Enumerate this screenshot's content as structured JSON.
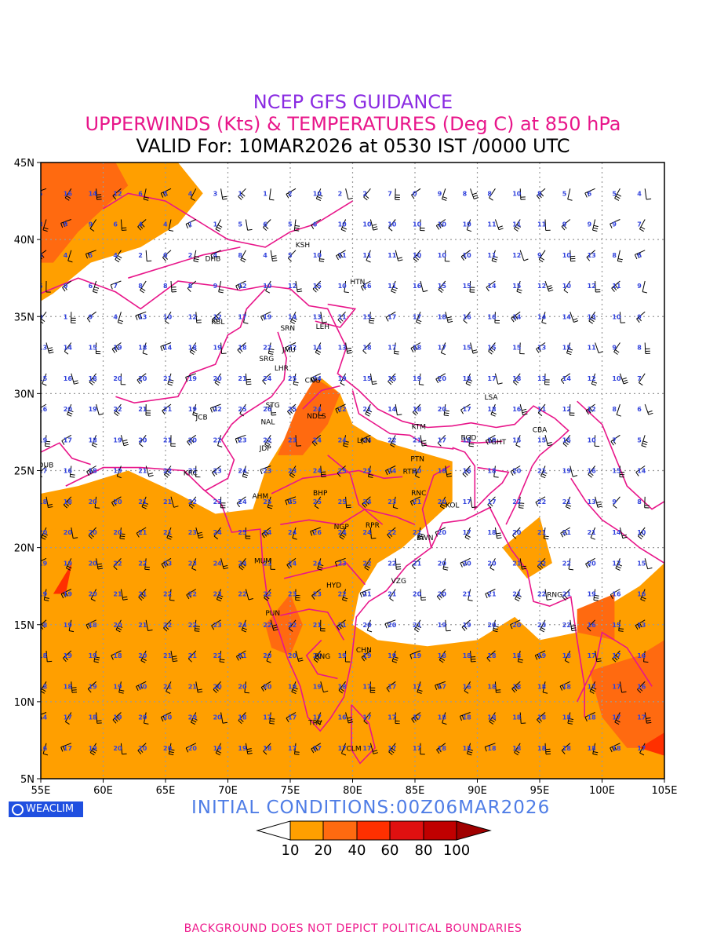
{
  "titles": {
    "line1": "NCEP GFS GUIDANCE",
    "line2": "UPPERWINDS (Kts) & TEMPERATURES (Deg C) at 850 hPa",
    "line3": "VALID For: 10MAR2026 at 0530 IST /0000 UTC"
  },
  "colors": {
    "title1": "#8a2be2",
    "title2": "#e8168a",
    "title3": "#000000",
    "boundary": "#e8168a",
    "temp_labels": "#3344dd",
    "grid": "#9a9a9a",
    "land_shade_10": "#ff9f00",
    "land_shade_20": "#ff6a10",
    "land_shade_40": "#ff3000"
  },
  "axes": {
    "lat_labels": [
      "45N",
      "40N",
      "35N",
      "30N",
      "25N",
      "20N",
      "15N",
      "10N",
      "5N"
    ],
    "lon_labels": [
      "55E",
      "60E",
      "65E",
      "70E",
      "75E",
      "80E",
      "85E",
      "90E",
      "95E",
      "100E",
      "105E"
    ]
  },
  "stations": [
    {
      "code": "KSH",
      "lon": 76.0,
      "lat": 39.5
    },
    {
      "code": "DHB",
      "lon": 68.8,
      "lat": 38.6
    },
    {
      "code": "HTN",
      "lon": 80.4,
      "lat": 37.1
    },
    {
      "code": "KBL",
      "lon": 69.2,
      "lat": 34.5
    },
    {
      "code": "SRN",
      "lon": 74.8,
      "lat": 34.1
    },
    {
      "code": "LEH",
      "lon": 77.6,
      "lat": 34.2
    },
    {
      "code": "JMU",
      "lon": 74.9,
      "lat": 32.7
    },
    {
      "code": "SRG",
      "lon": 73.1,
      "lat": 32.1
    },
    {
      "code": "LHR",
      "lon": 74.3,
      "lat": 31.5
    },
    {
      "code": "CNG",
      "lon": 76.8,
      "lat": 30.7
    },
    {
      "code": "LSA",
      "lon": 91.1,
      "lat": 29.6
    },
    {
      "code": "STG",
      "lon": 73.6,
      "lat": 29.1
    },
    {
      "code": "JCB",
      "lon": 67.9,
      "lat": 28.3
    },
    {
      "code": "NAL",
      "lon": 73.2,
      "lat": 28.0
    },
    {
      "code": "NDLS",
      "lon": 77.1,
      "lat": 28.4
    },
    {
      "code": "CBA",
      "lon": 95.0,
      "lat": 27.5
    },
    {
      "code": "KTM",
      "lon": 85.3,
      "lat": 27.7
    },
    {
      "code": "BGD",
      "lon": 89.3,
      "lat": 27.0
    },
    {
      "code": "GHT",
      "lon": 91.7,
      "lat": 26.7
    },
    {
      "code": "LKN",
      "lon": 80.9,
      "lat": 26.8
    },
    {
      "code": "JDP",
      "lon": 73.0,
      "lat": 26.3
    },
    {
      "code": "PTN",
      "lon": 85.2,
      "lat": 25.6
    },
    {
      "code": "DUB",
      "lon": 55.4,
      "lat": 25.2
    },
    {
      "code": "KRC",
      "lon": 67.0,
      "lat": 24.7
    },
    {
      "code": "RTH",
      "lon": 84.6,
      "lat": 24.8
    },
    {
      "code": "BHP",
      "lon": 77.4,
      "lat": 23.4
    },
    {
      "code": "AHM",
      "lon": 72.6,
      "lat": 23.2
    },
    {
      "code": "RNC",
      "lon": 85.3,
      "lat": 23.4
    },
    {
      "code": "KOL",
      "lon": 88.0,
      "lat": 22.6
    },
    {
      "code": "NGP",
      "lon": 79.1,
      "lat": 21.2
    },
    {
      "code": "RPR",
      "lon": 81.6,
      "lat": 21.3
    },
    {
      "code": "BWN",
      "lon": 85.8,
      "lat": 20.5
    },
    {
      "code": "MUM",
      "lon": 72.8,
      "lat": 19.0
    },
    {
      "code": "HYD",
      "lon": 78.5,
      "lat": 17.4
    },
    {
      "code": "VZG",
      "lon": 83.7,
      "lat": 17.7
    },
    {
      "code": "RNG",
      "lon": 96.2,
      "lat": 16.8
    },
    {
      "code": "PUN",
      "lon": 73.6,
      "lat": 15.6
    },
    {
      "code": "CHN",
      "lon": 80.9,
      "lat": 13.2
    },
    {
      "code": "BNG",
      "lon": 77.6,
      "lat": 12.8
    },
    {
      "code": "TRV",
      "lon": 77.0,
      "lat": 8.5
    },
    {
      "code": "CLM",
      "lon": 80.1,
      "lat": 6.8
    }
  ],
  "temperature_grid": {
    "lons": [
      55,
      57,
      59,
      61,
      63,
      65,
      67,
      69,
      71,
      73,
      75,
      77,
      79,
      81,
      83,
      85,
      87,
      89,
      91,
      93,
      95,
      97,
      99,
      101,
      103
    ],
    "lats": [
      43,
      41,
      39,
      37,
      35,
      33,
      31,
      29,
      27,
      25,
      23,
      21,
      19,
      17,
      15,
      13,
      11,
      9,
      7
    ],
    "rows": [
      [
        "5",
        "16",
        "14",
        "12",
        "6",
        "5",
        "4",
        "3",
        "1",
        "1",
        "2",
        "10",
        "2",
        "2",
        "7",
        "0",
        "9",
        "8",
        "8",
        "10",
        "8",
        "5",
        "6",
        "5",
        "4"
      ],
      [
        "8",
        "9",
        "9",
        "6",
        "4",
        "4",
        "1",
        "1",
        "5",
        "6",
        "5",
        "6",
        "10",
        "10",
        "10",
        "10",
        "10",
        "10",
        "11",
        "11",
        "11",
        "9",
        "9",
        "9",
        "7"
      ],
      [
        "4",
        "4",
        "5",
        "4",
        "2",
        "0",
        "2",
        "4",
        "8",
        "4",
        "5",
        "10",
        "11",
        "11",
        "11",
        "10",
        "10",
        "10",
        "11",
        "12",
        "9",
        "10",
        "13",
        "8",
        "6"
      ],
      [
        "5",
        "0",
        "6",
        "7",
        "8",
        "8",
        "8",
        "9",
        "12",
        "10",
        "12",
        "15",
        "10",
        "16",
        "11",
        "16",
        "15",
        "15",
        "14",
        "15",
        "12",
        "10",
        "12",
        "11",
        "9"
      ],
      [
        "0",
        "1",
        "9",
        "4",
        "13",
        "10",
        "12",
        "12",
        "17",
        "19",
        "14",
        "13",
        "11",
        "15",
        "17",
        "17",
        "18",
        "16",
        "16",
        "14",
        "14",
        "14",
        "13",
        "10",
        "9"
      ],
      [
        "13",
        "14",
        "15",
        "19",
        "18",
        "14",
        "18",
        "19",
        "18",
        "22",
        "22",
        "14",
        "13",
        "18",
        "17",
        "18",
        "17",
        "15",
        "15",
        "15",
        "13",
        "15",
        "11",
        "9",
        "8"
      ],
      [
        "15",
        "16",
        "18",
        "20",
        "20",
        "21",
        "19",
        "20",
        "21",
        "24",
        "25",
        "24",
        "19",
        "15",
        "15",
        "19",
        "20",
        "18",
        "17",
        "18",
        "13",
        "14",
        "12",
        "10",
        "7"
      ],
      [
        "16",
        "20",
        "19",
        "22",
        "21",
        "21",
        "19",
        "22",
        "25",
        "26",
        "25",
        "24",
        "22",
        "21",
        "14",
        "18",
        "20",
        "17",
        "18",
        "16",
        "11",
        "12",
        "12",
        "8",
        "6"
      ],
      [
        "19",
        "17",
        "18",
        "19",
        "20",
        "21",
        "20",
        "22",
        "23",
        "22",
        "23",
        "24",
        "24",
        "24",
        "22",
        "21",
        "17",
        "18",
        "18",
        "15",
        "15",
        "15",
        "10",
        "7",
        "5"
      ],
      [
        "17",
        "16",
        "18",
        "19",
        "21",
        "22",
        "22",
        "23",
        "24",
        "23",
        "23",
        "24",
        "25",
        "25",
        "24",
        "20",
        "18",
        "16",
        "18",
        "20",
        "21",
        "19",
        "16",
        "15",
        "14"
      ],
      [
        "18",
        "18",
        "20",
        "20",
        "21",
        "21",
        "22",
        "23",
        "24",
        "25",
        "25",
        "25",
        "25",
        "24",
        "23",
        "21",
        "20",
        "17",
        "17",
        "22",
        "22",
        "21",
        "13",
        "9",
        "8"
      ],
      [
        "20",
        "20",
        "20",
        "20",
        "21",
        "21",
        "23",
        "24",
        "25",
        "24",
        "24",
        "26",
        "24",
        "24",
        "22",
        "22",
        "20",
        "17",
        "18",
        "20",
        "21",
        "21",
        "21",
        "14",
        "10"
      ],
      [
        "19",
        "19",
        "20",
        "22",
        "22",
        "23",
        "23",
        "24",
        "24",
        "23",
        "24",
        "24",
        "23",
        "22",
        "22",
        "21",
        "20",
        "20",
        "20",
        "21",
        "22",
        "22",
        "20",
        "17",
        "15"
      ],
      [
        "19",
        "19",
        "20",
        "21",
        "21",
        "22",
        "22",
        "23",
        "22",
        "22",
        "23",
        "23",
        "22",
        "21",
        "21",
        "20",
        "20",
        "21",
        "21",
        "21",
        "22",
        "21",
        "19",
        "16",
        "16"
      ],
      [
        "18",
        "19",
        "18",
        "20",
        "21",
        "22",
        "22",
        "23",
        "24",
        "22",
        "22",
        "21",
        "21",
        "20",
        "20",
        "21",
        "19",
        "19",
        "20",
        "20",
        "23",
        "22",
        "16",
        "15",
        "13"
      ],
      [
        "18",
        "19",
        "19",
        "18",
        "20",
        "21",
        "21",
        "22",
        "21",
        "20",
        "20",
        "20",
        "19",
        "19",
        "19",
        "19",
        "18",
        "18",
        "18",
        "18",
        "19",
        "18",
        "17",
        "17",
        "16"
      ],
      [
        "18",
        "18",
        "19",
        "19",
        "20",
        "21",
        "21",
        "20",
        "20",
        "20",
        "19",
        "19",
        "18",
        "17",
        "17",
        "17",
        "17",
        "16",
        "18",
        "18",
        "18",
        "18",
        "17",
        "17",
        "16"
      ],
      [
        "14",
        "17",
        "18",
        "19",
        "20",
        "20",
        "20",
        "20",
        "18",
        "17",
        "17",
        "17",
        "16",
        "17",
        "17",
        "17",
        "18",
        "18",
        "18",
        "18",
        "18",
        "18",
        "18",
        "17",
        "17"
      ],
      [
        "16",
        "17",
        "19",
        "20",
        "20",
        "20",
        "20",
        "19",
        "19",
        "18",
        "17",
        "17",
        "17",
        "17",
        "17",
        "17",
        "18",
        "18",
        "18",
        "18",
        "18",
        "18",
        "18",
        "18",
        "17"
      ]
    ]
  },
  "initial_conditions": "INITIAL CONDITIONS:00Z06MAR2026",
  "legend": {
    "values": [
      "10",
      "20",
      "40",
      "60",
      "80",
      "100"
    ],
    "colors": [
      "#ffffff",
      "#ff9f00",
      "#ff6a10",
      "#ff3000",
      "#e01010",
      "#c00000",
      "#a00000"
    ]
  },
  "logo": "WEACLIM",
  "footer": "BACKGROUND DOES NOT DEPICT POLITICAL BOUNDARIES"
}
